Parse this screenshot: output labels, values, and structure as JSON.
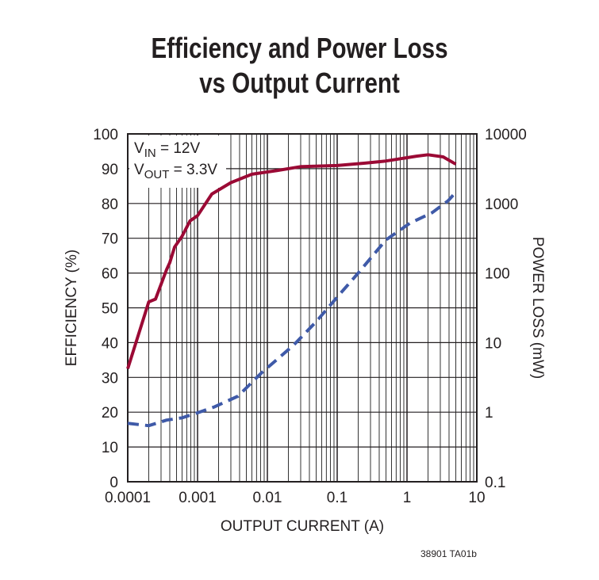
{
  "chart_data": {
    "type": "line",
    "title": [
      "Efficiency and Power Loss",
      "vs Output Current"
    ],
    "xlabel": "OUTPUT CURRENT (A)",
    "ylabel": "EFFICIENCY (%)",
    "y2label": "POWER LOSS (mW)",
    "xscale": "log",
    "y2scale": "log",
    "xlim": [
      0.0001,
      10
    ],
    "ylim": [
      0,
      100
    ],
    "y2lim": [
      0.1,
      10000
    ],
    "xticks": [
      "0.0001",
      "0.001",
      "0.01",
      "0.1",
      "1",
      "10"
    ],
    "yticks": [
      "0",
      "10",
      "20",
      "30",
      "40",
      "50",
      "60",
      "70",
      "80",
      "90",
      "100"
    ],
    "y2ticks": [
      "0.1",
      "1",
      "10",
      "100",
      "1000",
      "10000"
    ],
    "grid": true,
    "annotation": {
      "vin_label": "V",
      "vin_sub": "IN",
      "vin_value": " = 12V",
      "vout_label": "V",
      "vout_sub": "OUT",
      "vout_value": " = 3.3V"
    },
    "series": [
      {
        "axis": "left",
        "style": "solid",
        "color": "#9b0a35",
        "x": [
          0.0001,
          0.0002,
          0.00025,
          0.00036,
          0.0004,
          0.00047,
          0.0006,
          0.00078,
          0.001,
          0.0016,
          0.003,
          0.006,
          0.014,
          0.03,
          0.1,
          0.25,
          0.5,
          1.37,
          2,
          3.3,
          5
        ],
        "y": [
          32.5,
          51.7,
          52.5,
          61,
          63,
          67.5,
          70.6,
          75,
          76.5,
          82.7,
          86,
          88.4,
          89.5,
          90.6,
          90.9,
          91.6,
          92.2,
          93.6,
          94,
          93.4,
          91.3
        ]
      },
      {
        "axis": "right",
        "style": "dashed",
        "color": "#3f5aa8",
        "x": [
          0.0001,
          0.0002,
          0.00036,
          0.0006,
          0.001,
          0.0017,
          0.0038,
          0.0083,
          0.024,
          0.05,
          0.1,
          0.2,
          0.5,
          1.1,
          2.3,
          3.9,
          5
        ],
        "y": [
          0.69,
          0.64,
          0.77,
          0.83,
          0.98,
          1.18,
          1.7,
          3.7,
          9.3,
          20,
          45,
          100,
          300,
          520,
          740,
          1100,
          1450
        ]
      }
    ]
  },
  "footnote": "38901 TA01b"
}
